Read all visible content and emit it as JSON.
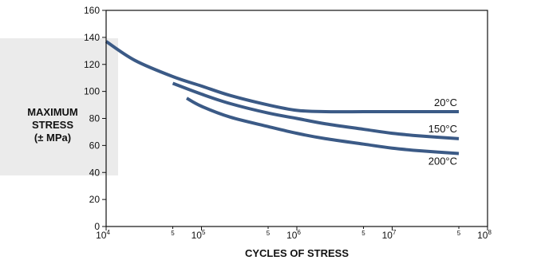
{
  "chart_data": {
    "type": "line",
    "title": "",
    "xlabel": "CYCLES OF STRESS",
    "ylabel_lines": [
      "MAXIMUM",
      "STRESS",
      "(± MPa)"
    ],
    "x_scale": "log",
    "xlim": [
      10000,
      100000000
    ],
    "ylim": [
      0,
      160
    ],
    "y_ticks": [
      0,
      20,
      40,
      60,
      80,
      100,
      120,
      140,
      160
    ],
    "x_ticks": [
      {
        "value": 10000,
        "base": "10",
        "exp": "4"
      },
      {
        "value": 100000,
        "base": "10",
        "exp": "5"
      },
      {
        "value": 1000000,
        "base": "10",
        "exp": "6"
      },
      {
        "value": 10000000,
        "base": "10",
        "exp": "7"
      },
      {
        "value": 100000000,
        "base": "10",
        "exp": "8"
      }
    ],
    "x_minor_ticks": [
      {
        "value": 50000,
        "label": "5"
      },
      {
        "value": 500000,
        "label": "5"
      },
      {
        "value": 5000000,
        "label": "5"
      },
      {
        "value": 50000000,
        "label": "5"
      }
    ],
    "grid": false,
    "colors": {
      "series": "#3b5a86",
      "highlight_band": "#ebebeb"
    },
    "series": [
      {
        "name": "20°C",
        "points": [
          [
            10000,
            137
          ],
          [
            20000,
            123
          ],
          [
            50000,
            111
          ],
          [
            100000,
            104
          ],
          [
            200000,
            97
          ],
          [
            500000,
            90
          ],
          [
            1000000,
            86
          ],
          [
            2000000,
            85
          ],
          [
            5000000,
            85
          ],
          [
            10000000,
            85
          ],
          [
            50000000,
            85
          ]
        ]
      },
      {
        "name": "150°C",
        "points": [
          [
            50000,
            106
          ],
          [
            100000,
            98
          ],
          [
            200000,
            91
          ],
          [
            500000,
            84
          ],
          [
            1000000,
            80
          ],
          [
            2000000,
            76
          ],
          [
            5000000,
            72
          ],
          [
            10000000,
            69
          ],
          [
            20000000,
            67
          ],
          [
            50000000,
            65
          ]
        ]
      },
      {
        "name": "200°C",
        "points": [
          [
            70000,
            95
          ],
          [
            100000,
            89
          ],
          [
            200000,
            81
          ],
          [
            500000,
            74
          ],
          [
            1000000,
            69
          ],
          [
            2000000,
            65
          ],
          [
            5000000,
            61
          ],
          [
            10000000,
            58
          ],
          [
            20000000,
            56
          ],
          [
            50000000,
            54
          ]
        ]
      }
    ]
  }
}
